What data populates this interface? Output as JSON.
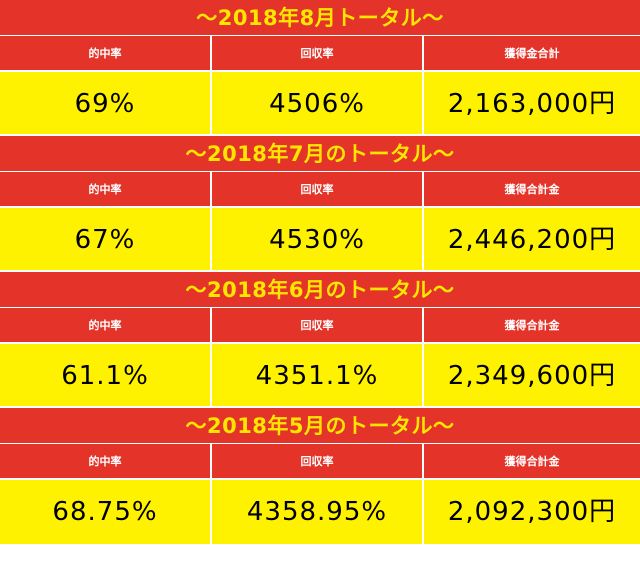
{
  "blocks": [
    {
      "title": "〜2018年8月トータル〜",
      "headers": [
        "的中率",
        "回収率",
        "獲得金合計"
      ],
      "values": [
        "69%",
        "4506%",
        "2,163,000円"
      ]
    },
    {
      "title": "〜2018年7月のトータル〜",
      "headers": [
        "的中率",
        "回収率",
        "獲得合計金"
      ],
      "values": [
        "67%",
        "4530%",
        "2,446,200円"
      ]
    },
    {
      "title": "〜2018年6月のトータル〜",
      "headers": [
        "的中率",
        "回収率",
        "獲得合計金"
      ],
      "values": [
        "61.1%",
        "4351.1%",
        "2,349,600円"
      ]
    },
    {
      "title": "〜2018年5月のトータル〜",
      "headers": [
        "的中率",
        "回収率",
        "獲得合計金"
      ],
      "values": [
        "68.75%",
        "4358.95%",
        "2,092,300円"
      ]
    }
  ],
  "colors": {
    "header_red": "#e4342a",
    "title_text_yellow": "#ffe600",
    "value_yellow": "#fff200",
    "header_text_white": "#ffffff"
  }
}
